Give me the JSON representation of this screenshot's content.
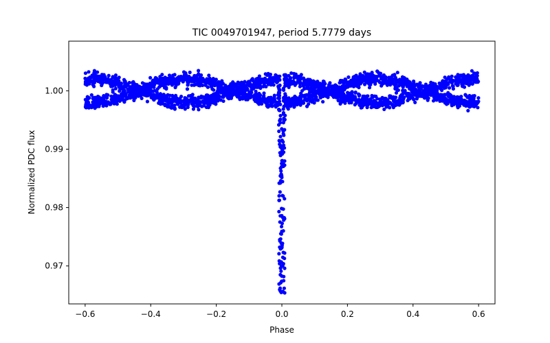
{
  "chart_data": {
    "type": "scatter",
    "title": "TIC 0049701947, period 5.7779 days",
    "xlabel": "Phase",
    "ylabel": "Normalized PDC flux",
    "xlim": [
      -0.65,
      0.65
    ],
    "ylim": [
      0.9635,
      1.0085
    ],
    "xticks": [
      -0.6,
      -0.4,
      -0.2,
      0.0,
      0.2,
      0.4,
      0.6
    ],
    "xtick_labels": [
      "−0.6",
      "−0.4",
      "−0.2",
      "0.0",
      "0.2",
      "0.4",
      "0.6"
    ],
    "yticks": [
      0.97,
      0.98,
      0.99,
      1.0
    ],
    "ytick_labels": [
      "0.97",
      "0.98",
      "0.99",
      "1.00"
    ],
    "grid": false,
    "marker_color": "#0000ff",
    "series": [
      {
        "name": "flux",
        "phase_range": [
          -0.6,
          0.6
        ],
        "baseline_flux": 1.0,
        "scatter_band": 0.0025,
        "modulation_amplitude": 0.0022,
        "transit_center": 0.0,
        "transit_min_flux": 0.965,
        "transit_half_width": 0.012,
        "sample_points": [
          {
            "x": -0.6,
            "y": 1.0015
          },
          {
            "x": -0.5,
            "y": 1.0025
          },
          {
            "x": -0.4,
            "y": 1.0015
          },
          {
            "x": -0.3,
            "y": 0.9995
          },
          {
            "x": -0.2,
            "y": 0.998
          },
          {
            "x": -0.1,
            "y": 1.001
          },
          {
            "x": -0.05,
            "y": 1.002
          },
          {
            "x": -0.01,
            "y": 0.998
          },
          {
            "x": 0.0,
            "y": 0.9655
          },
          {
            "x": 0.01,
            "y": 0.9975
          },
          {
            "x": 0.05,
            "y": 0.9975
          },
          {
            "x": 0.1,
            "y": 0.9985
          },
          {
            "x": 0.2,
            "y": 1.0005
          },
          {
            "x": 0.3,
            "y": 1.002
          },
          {
            "x": 0.4,
            "y": 1.0025
          },
          {
            "x": 0.5,
            "y": 1.0015
          },
          {
            "x": 0.6,
            "y": 1.001
          }
        ]
      }
    ]
  }
}
